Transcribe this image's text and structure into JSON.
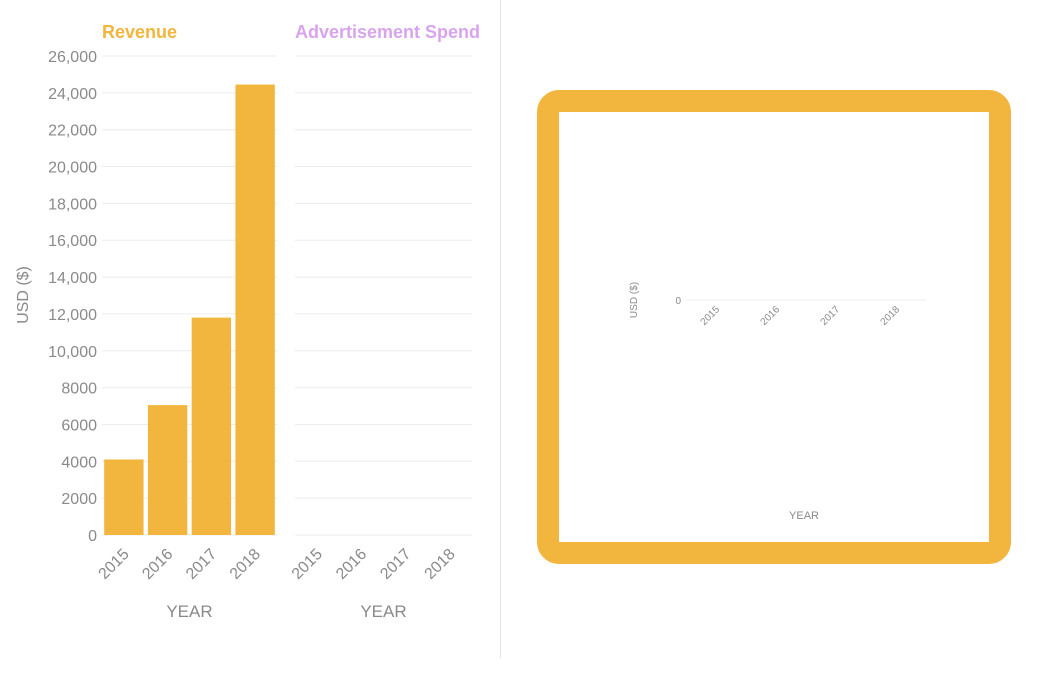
{
  "colors": {
    "revenue": "#f2b53d",
    "ad_spend": "#d9a4ee",
    "grid": "#ececec",
    "axis_text": "#8a8a8a",
    "frame": "#f2b53d"
  },
  "chart_data": [
    {
      "type": "bar",
      "title": "Revenue",
      "categories": [
        "2015",
        "2016",
        "2017",
        "2018"
      ],
      "values": [
        4100,
        7050,
        11800,
        24450
      ],
      "xlabel": "YEAR",
      "ylabel": "USD ($)",
      "ylim": [
        0,
        26000
      ],
      "yticks": [
        "0",
        "2000",
        "4000",
        "6000",
        "8000",
        "10,000",
        "12,000",
        "14,000",
        "16,000",
        "18,000",
        "20,000",
        "22,000",
        "24,000",
        "26,000"
      ],
      "grid": true
    },
    {
      "type": "bar",
      "title": "Advertisement Spend",
      "categories": [
        "2015",
        "2016",
        "2017",
        "2018"
      ],
      "values": [
        0,
        0,
        0,
        0
      ],
      "xlabel": "YEAR",
      "ylim": [
        0,
        26000
      ],
      "grid": true
    },
    {
      "type": "bar",
      "categories": [
        "2015",
        "2016",
        "2017",
        "2018"
      ],
      "values": [
        0,
        0,
        0,
        0
      ],
      "xlabel": "YEAR",
      "ylabel": "USD ($)",
      "yticks": [
        "0"
      ]
    }
  ]
}
